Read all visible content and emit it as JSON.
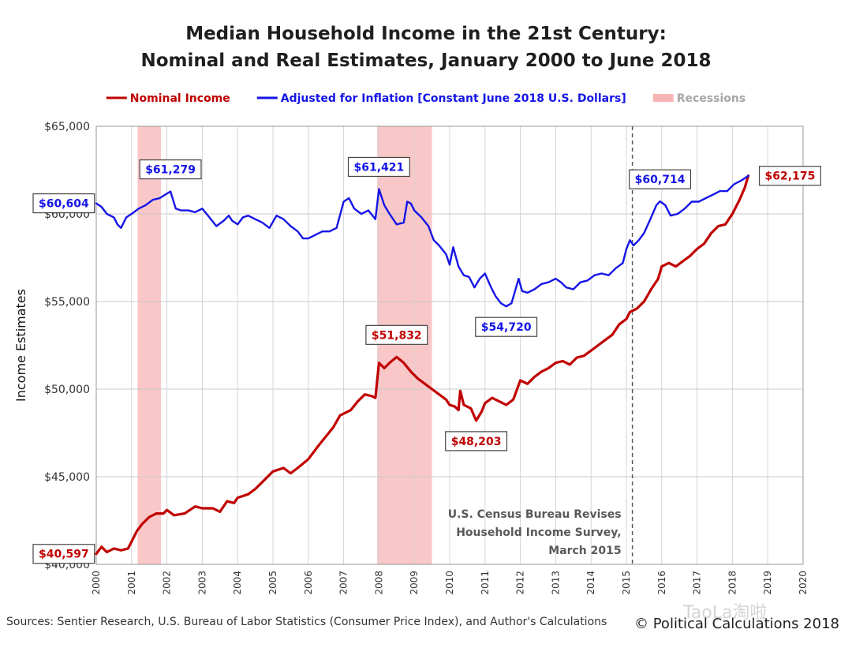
{
  "chart_data": {
    "type": "line",
    "title": "Median Household Income in the 21st Century:",
    "subtitle": "Nominal and Real Estimates, January 2000 to June 2018",
    "ylabel": "Income Estimates",
    "xlabel": "",
    "xlim": [
      2000,
      2020
    ],
    "ylim": [
      40000,
      65000
    ],
    "x_ticks": [
      "2000",
      "2001",
      "2002",
      "2003",
      "2004",
      "2005",
      "2006",
      "2007",
      "2008",
      "2009",
      "2010",
      "2011",
      "2012",
      "2013",
      "2014",
      "2015",
      "2016",
      "2017",
      "2018",
      "2019",
      "2020"
    ],
    "y_ticks": [
      "$40,000",
      "$45,000",
      "$50,000",
      "$55,000",
      "$60,000",
      "$65,000"
    ],
    "grid": true,
    "legend": {
      "position": "top",
      "entries": [
        {
          "label": "Nominal Income",
          "color": "#c00000",
          "kind": "line"
        },
        {
          "label": "Adjusted for Inflation [Constant June 2018 U.S. Dollars]",
          "color": "#1515e6",
          "kind": "line"
        },
        {
          "label": "Recessions",
          "color": "#f7b4b4",
          "kind": "band"
        }
      ]
    },
    "recessions": [
      [
        2001.17,
        2001.83
      ],
      [
        2007.95,
        2009.5
      ]
    ],
    "series": [
      {
        "name": "Nominal Income",
        "color": "#c00000",
        "points": [
          [
            2000.0,
            40597
          ],
          [
            2000.15,
            41000
          ],
          [
            2000.3,
            40700
          ],
          [
            2000.5,
            40900
          ],
          [
            2000.7,
            40800
          ],
          [
            2000.9,
            40900
          ],
          [
            2001.0,
            41300
          ],
          [
            2001.15,
            41900
          ],
          [
            2001.3,
            42300
          ],
          [
            2001.5,
            42700
          ],
          [
            2001.7,
            42900
          ],
          [
            2001.9,
            42900
          ],
          [
            2002.0,
            43100
          ],
          [
            2002.2,
            42800
          ],
          [
            2002.5,
            42900
          ],
          [
            2002.8,
            43300
          ],
          [
            2003.0,
            43200
          ],
          [
            2003.3,
            43200
          ],
          [
            2003.5,
            43000
          ],
          [
            2003.7,
            43600
          ],
          [
            2003.9,
            43500
          ],
          [
            2004.0,
            43800
          ],
          [
            2004.3,
            44000
          ],
          [
            2004.5,
            44300
          ],
          [
            2004.7,
            44700
          ],
          [
            2004.9,
            45100
          ],
          [
            2005.0,
            45300
          ],
          [
            2005.3,
            45500
          ],
          [
            2005.5,
            45200
          ],
          [
            2005.7,
            45500
          ],
          [
            2006.0,
            46000
          ],
          [
            2006.3,
            46800
          ],
          [
            2006.5,
            47300
          ],
          [
            2006.7,
            47800
          ],
          [
            2006.9,
            48500
          ],
          [
            2007.0,
            48600
          ],
          [
            2007.2,
            48800
          ],
          [
            2007.4,
            49300
          ],
          [
            2007.6,
            49700
          ],
          [
            2007.8,
            49600
          ],
          [
            2007.9,
            49500
          ],
          [
            2008.0,
            51500
          ],
          [
            2008.15,
            51200
          ],
          [
            2008.3,
            51500
          ],
          [
            2008.5,
            51832
          ],
          [
            2008.7,
            51500
          ],
          [
            2008.9,
            51000
          ],
          [
            2009.1,
            50600
          ],
          [
            2009.3,
            50300
          ],
          [
            2009.5,
            50000
          ],
          [
            2009.7,
            49700
          ],
          [
            2009.9,
            49400
          ],
          [
            2010.0,
            49100
          ],
          [
            2010.15,
            49000
          ],
          [
            2010.25,
            48800
          ],
          [
            2010.3,
            49900
          ],
          [
            2010.4,
            49100
          ],
          [
            2010.6,
            48900
          ],
          [
            2010.75,
            48203
          ],
          [
            2010.9,
            48700
          ],
          [
            2011.0,
            49200
          ],
          [
            2011.2,
            49500
          ],
          [
            2011.4,
            49300
          ],
          [
            2011.6,
            49100
          ],
          [
            2011.8,
            49400
          ],
          [
            2012.0,
            50500
          ],
          [
            2012.2,
            50300
          ],
          [
            2012.4,
            50700
          ],
          [
            2012.6,
            51000
          ],
          [
            2012.8,
            51200
          ],
          [
            2013.0,
            51500
          ],
          [
            2013.2,
            51600
          ],
          [
            2013.4,
            51400
          ],
          [
            2013.6,
            51800
          ],
          [
            2013.8,
            51900
          ],
          [
            2014.0,
            52200
          ],
          [
            2014.2,
            52500
          ],
          [
            2014.4,
            52800
          ],
          [
            2014.6,
            53100
          ],
          [
            2014.8,
            53700
          ],
          [
            2015.0,
            54000
          ],
          [
            2015.1,
            54400
          ],
          [
            2015.3,
            54600
          ],
          [
            2015.5,
            55000
          ],
          [
            2015.7,
            55700
          ],
          [
            2015.9,
            56300
          ],
          [
            2016.0,
            57000
          ],
          [
            2016.2,
            57200
          ],
          [
            2016.4,
            57000
          ],
          [
            2016.6,
            57300
          ],
          [
            2016.8,
            57600
          ],
          [
            2017.0,
            58000
          ],
          [
            2017.2,
            58300
          ],
          [
            2017.4,
            58900
          ],
          [
            2017.6,
            59300
          ],
          [
            2017.8,
            59400
          ],
          [
            2018.0,
            60000
          ],
          [
            2018.2,
            60800
          ],
          [
            2018.35,
            61500
          ],
          [
            2018.45,
            62175
          ]
        ]
      },
      {
        "name": "Adjusted for Inflation [Constant June 2018 U.S. Dollars]",
        "color": "#1515e6",
        "points": [
          [
            2000.0,
            60604
          ],
          [
            2000.15,
            60400
          ],
          [
            2000.3,
            60000
          ],
          [
            2000.5,
            59800
          ],
          [
            2000.6,
            59400
          ],
          [
            2000.7,
            59200
          ],
          [
            2000.85,
            59800
          ],
          [
            2001.0,
            60000
          ],
          [
            2001.2,
            60300
          ],
          [
            2001.4,
            60500
          ],
          [
            2001.6,
            60800
          ],
          [
            2001.8,
            60900
          ],
          [
            2001.95,
            61100
          ],
          [
            2002.1,
            61279
          ],
          [
            2002.25,
            60300
          ],
          [
            2002.4,
            60200
          ],
          [
            2002.6,
            60200
          ],
          [
            2002.8,
            60100
          ],
          [
            2003.0,
            60300
          ],
          [
            2003.2,
            59800
          ],
          [
            2003.4,
            59300
          ],
          [
            2003.6,
            59600
          ],
          [
            2003.75,
            59900
          ],
          [
            2003.85,
            59600
          ],
          [
            2004.0,
            59400
          ],
          [
            2004.15,
            59800
          ],
          [
            2004.3,
            59900
          ],
          [
            2004.5,
            59700
          ],
          [
            2004.7,
            59500
          ],
          [
            2004.9,
            59200
          ],
          [
            2005.1,
            59900
          ],
          [
            2005.3,
            59700
          ],
          [
            2005.5,
            59300
          ],
          [
            2005.7,
            59000
          ],
          [
            2005.85,
            58600
          ],
          [
            2006.0,
            58600
          ],
          [
            2006.2,
            58800
          ],
          [
            2006.4,
            59000
          ],
          [
            2006.6,
            59000
          ],
          [
            2006.8,
            59200
          ],
          [
            2007.0,
            60700
          ],
          [
            2007.15,
            60900
          ],
          [
            2007.3,
            60300
          ],
          [
            2007.5,
            60000
          ],
          [
            2007.7,
            60200
          ],
          [
            2007.9,
            59700
          ],
          [
            2008.0,
            61421
          ],
          [
            2008.15,
            60500
          ],
          [
            2008.3,
            60000
          ],
          [
            2008.5,
            59400
          ],
          [
            2008.7,
            59500
          ],
          [
            2008.8,
            60700
          ],
          [
            2008.9,
            60600
          ],
          [
            2009.0,
            60200
          ],
          [
            2009.2,
            59800
          ],
          [
            2009.4,
            59300
          ],
          [
            2009.55,
            58500
          ],
          [
            2009.7,
            58200
          ],
          [
            2009.9,
            57700
          ],
          [
            2010.0,
            57100
          ],
          [
            2010.1,
            58100
          ],
          [
            2010.25,
            57000
          ],
          [
            2010.4,
            56500
          ],
          [
            2010.55,
            56400
          ],
          [
            2010.7,
            55800
          ],
          [
            2010.85,
            56300
          ],
          [
            2011.0,
            56600
          ],
          [
            2011.15,
            55900
          ],
          [
            2011.3,
            55300
          ],
          [
            2011.45,
            54900
          ],
          [
            2011.6,
            54720
          ],
          [
            2011.75,
            54900
          ],
          [
            2011.85,
            55600
          ],
          [
            2011.95,
            56300
          ],
          [
            2012.05,
            55600
          ],
          [
            2012.2,
            55500
          ],
          [
            2012.4,
            55700
          ],
          [
            2012.6,
            56000
          ],
          [
            2012.8,
            56100
          ],
          [
            2013.0,
            56300
          ],
          [
            2013.15,
            56100
          ],
          [
            2013.3,
            55800
          ],
          [
            2013.5,
            55700
          ],
          [
            2013.7,
            56100
          ],
          [
            2013.9,
            56200
          ],
          [
            2014.1,
            56500
          ],
          [
            2014.3,
            56600
          ],
          [
            2014.5,
            56500
          ],
          [
            2014.7,
            56900
          ],
          [
            2014.9,
            57200
          ],
          [
            2015.0,
            58000
          ],
          [
            2015.1,
            58500
          ],
          [
            2015.2,
            58200
          ],
          [
            2015.35,
            58500
          ],
          [
            2015.5,
            58900
          ],
          [
            2015.7,
            59800
          ],
          [
            2015.85,
            60500
          ],
          [
            2015.95,
            60714
          ],
          [
            2016.1,
            60500
          ],
          [
            2016.25,
            59900
          ],
          [
            2016.45,
            60000
          ],
          [
            2016.65,
            60300
          ],
          [
            2016.85,
            60700
          ],
          [
            2017.05,
            60700
          ],
          [
            2017.25,
            60900
          ],
          [
            2017.45,
            61100
          ],
          [
            2017.65,
            61300
          ],
          [
            2017.85,
            61300
          ],
          [
            2018.05,
            61700
          ],
          [
            2018.25,
            61900
          ],
          [
            2018.45,
            62175
          ]
        ]
      }
    ],
    "annotations": [
      {
        "text": "$60,604",
        "series": 1,
        "x": 2000.0,
        "y": 60604,
        "anchor": "left"
      },
      {
        "text": "$61,279",
        "series": 1,
        "x": 2002.1,
        "y": 61279,
        "anchor": "above"
      },
      {
        "text": "$61,421",
        "series": 1,
        "x": 2008.0,
        "y": 61421,
        "anchor": "above"
      },
      {
        "text": "$54,720",
        "series": 1,
        "x": 2011.6,
        "y": 54720,
        "anchor": "below"
      },
      {
        "text": "$60,714",
        "series": 1,
        "x": 2015.95,
        "y": 60714,
        "anchor": "above"
      },
      {
        "text": "$40,597",
        "series": 0,
        "x": 2000.0,
        "y": 40597,
        "anchor": "left"
      },
      {
        "text": "$51,832",
        "series": 0,
        "x": 2008.5,
        "y": 51832,
        "anchor": "above"
      },
      {
        "text": "$48,203",
        "series": 0,
        "x": 2010.75,
        "y": 48203,
        "anchor": "below"
      },
      {
        "text": "$62,175",
        "series": 0,
        "x": 2018.45,
        "y": 62175,
        "anchor": "right"
      }
    ],
    "reference_line": {
      "x": 2015.17,
      "style": "dashed",
      "note": [
        "U.S. Census Bureau Revises",
        "Household Income Survey,",
        "March 2015"
      ]
    }
  },
  "footer": {
    "sources": "Sources: Sentier Research, U.S. Bureau of Labor Statistics (Consumer  Price Index), and Author's Calculations",
    "credit": "© Political Calculations 2018",
    "watermark": "TaoLa淘啦"
  }
}
